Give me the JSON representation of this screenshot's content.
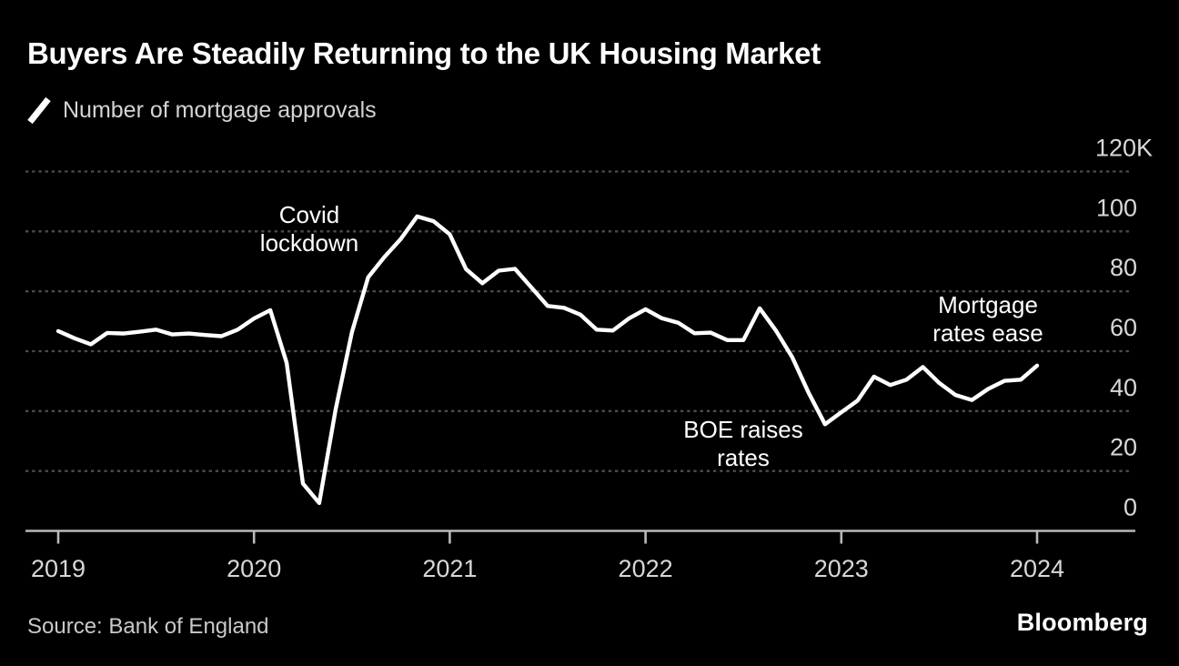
{
  "header": {
    "title": "Buyers Are Steadily Returning to the UK Housing Market",
    "legend_label": "Number of mortgage approvals"
  },
  "footer": {
    "source": "Source: Bank of England",
    "logo": "Bloomberg"
  },
  "colors": {
    "background": "#000000",
    "line": "#ffffff",
    "gridline": "#4d4d4d",
    "axis": "#b9b9b9",
    "axis_label": "#d8d8d8",
    "annotation": "#ffffff",
    "title": "#ffffff",
    "legend_text": "#d4d4d4",
    "source_text": "#c9c9c9"
  },
  "chart_data": {
    "type": "line",
    "title": "Buyers Are Steadily Returning to the UK Housing Market",
    "subtitle": "Number of mortgage approvals",
    "unit": "thousands of approvals",
    "frequency": "monthly",
    "x_start": "2019-01",
    "x_end": "2024-01",
    "x_tick_labels": [
      "2019",
      "2020",
      "2021",
      "2022",
      "2023",
      "2024"
    ],
    "y_ticks": [
      0,
      20,
      40,
      60,
      80,
      100,
      120
    ],
    "y_tick_labels": [
      "0",
      "20",
      "40",
      "60",
      "80",
      "100",
      "120K"
    ],
    "ylim": [
      0,
      120
    ],
    "grid": "horizontal-dashed",
    "legend_position": "top-left",
    "y_axis_position": "right",
    "series": [
      {
        "name": "Number of mortgage approvals",
        "values": [
          66.7,
          64.3,
          62.3,
          66.1,
          65.9,
          66.5,
          67.2,
          65.6,
          65.9,
          65.4,
          65.0,
          67.2,
          70.9,
          73.7,
          56.1,
          15.8,
          9.3,
          40.5,
          66.3,
          84.7,
          91.5,
          97.5,
          105.0,
          103.4,
          99.0,
          87.4,
          82.7,
          86.9,
          87.5,
          81.3,
          75.1,
          74.5,
          72.2,
          67.2,
          66.9,
          71.0,
          74.0,
          71.0,
          69.5,
          66.0,
          66.2,
          63.7,
          63.7,
          74.3,
          66.8,
          57.9,
          46.1,
          35.6,
          39.6,
          43.5,
          51.5,
          48.7,
          50.5,
          54.7,
          49.4,
          45.4,
          43.7,
          47.4,
          50.1,
          50.5,
          55.2
        ]
      }
    ],
    "annotations": {
      "covid": {
        "lines": [
          "Covid",
          "lockdown"
        ],
        "near": "2020-05"
      },
      "boe": {
        "lines": [
          "BOE raises",
          "rates"
        ],
        "near": "2022-12"
      },
      "mortgage": {
        "lines": [
          "Mortgage",
          "rates ease"
        ],
        "near": "2023-12"
      }
    }
  }
}
